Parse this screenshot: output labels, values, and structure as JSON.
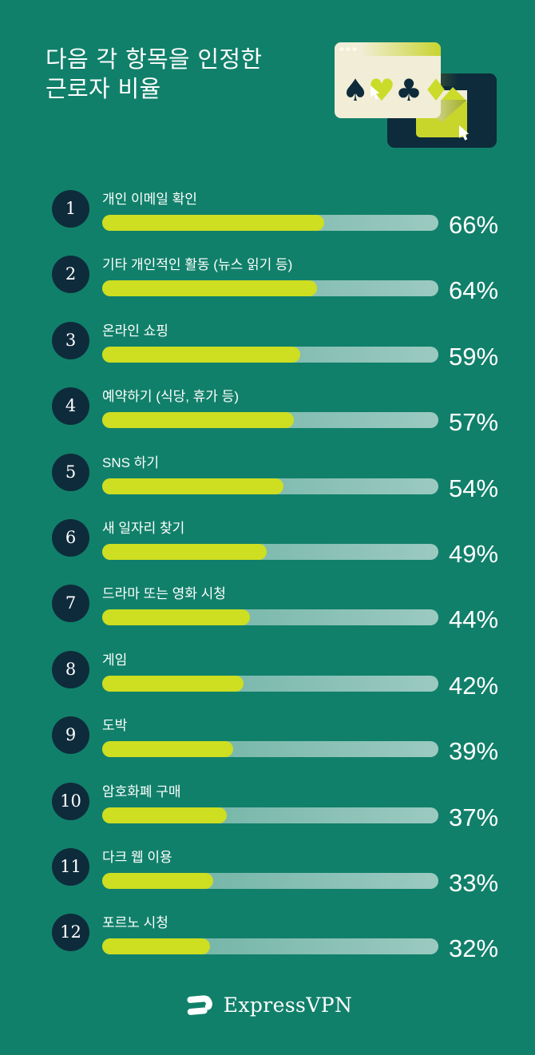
{
  "title": {
    "line1": "다음 각 항목을 인정한",
    "line2": "근로자 비율"
  },
  "rows": [
    {
      "rank": "1",
      "label": "개인 이메일 확인",
      "value": 66,
      "pct_label": "66%"
    },
    {
      "rank": "2",
      "label": "기타 개인적인 활동 (뉴스 읽기 등)",
      "value": 64,
      "pct_label": "64%"
    },
    {
      "rank": "3",
      "label": "온라인 쇼핑",
      "value": 59,
      "pct_label": "59%"
    },
    {
      "rank": "4",
      "label": "예약하기 (식당, 휴가 등)",
      "value": 57,
      "pct_label": "57%"
    },
    {
      "rank": "5",
      "label": "SNS 하기",
      "value": 54,
      "pct_label": "54%"
    },
    {
      "rank": "6",
      "label": "새 일자리 찾기",
      "value": 49,
      "pct_label": "49%"
    },
    {
      "rank": "7",
      "label": "드라마 또는 영화 시청",
      "value": 44,
      "pct_label": "44%"
    },
    {
      "rank": "8",
      "label": "게임",
      "value": 42,
      "pct_label": "42%"
    },
    {
      "rank": "9",
      "label": "도박",
      "value": 39,
      "pct_label": "39%"
    },
    {
      "rank": "10",
      "label": "암호화폐 구매",
      "value": 37,
      "pct_label": "37%"
    },
    {
      "rank": "11",
      "label": "다크 웹 이용",
      "value": 33,
      "pct_label": "33%"
    },
    {
      "rank": "12",
      "label": "포르노 시청",
      "value": 32,
      "pct_label": "32%"
    }
  ],
  "footer": {
    "brand": "ExpressVPN"
  },
  "colors": {
    "background": "#11806A",
    "badge_navy": "#0E2B3B",
    "bar_fill": "#CEDE20",
    "chartreuse": "#CBDB2A",
    "cream": "#F1EDD6",
    "text": "#FFFFFF"
  },
  "chart_data": {
    "type": "bar",
    "orientation": "horizontal",
    "title": "다음 각 항목을 인정한 근로자 비율",
    "categories": [
      "개인 이메일 확인",
      "기타 개인적인 활동 (뉴스 읽기 등)",
      "온라인 쇼핑",
      "예약하기 (식당, 휴가 등)",
      "SNS 하기",
      "새 일자리 찾기",
      "드라마 또는 영화 시청",
      "게임",
      "도박",
      "암호화폐 구매",
      "다크 웹 이용",
      "포르노 시청"
    ],
    "values": [
      66,
      64,
      59,
      57,
      54,
      49,
      44,
      42,
      39,
      37,
      33,
      32
    ],
    "value_suffix": "%",
    "xlim": [
      0,
      100
    ],
    "grid": false,
    "legend": false
  }
}
